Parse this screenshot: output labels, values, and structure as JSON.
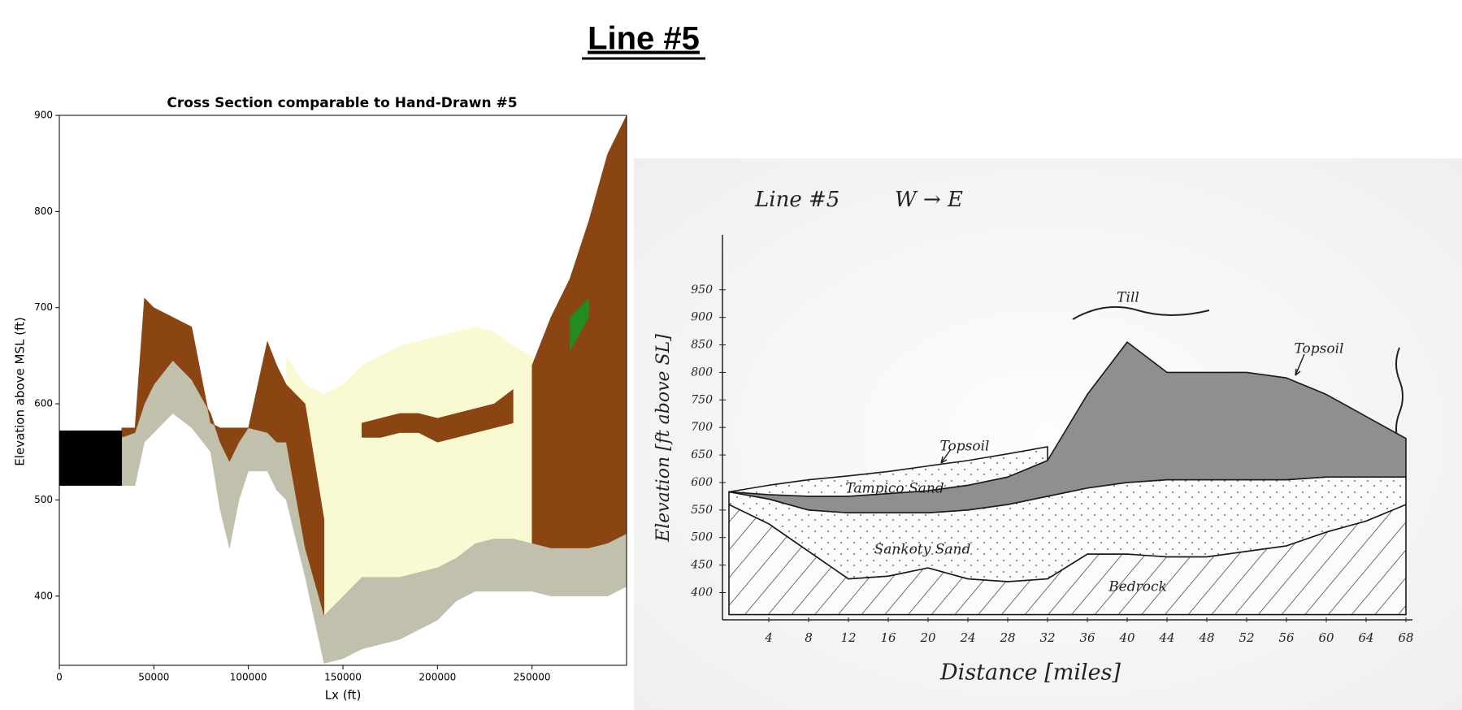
{
  "title": "Line #5",
  "chart_data": [
    {
      "type": "cross-section",
      "title": "Cross Section comparable to Hand-Drawn #5",
      "xlabel": "Lx (ft)",
      "ylabel": "Elevation above MSL (ft)",
      "xlim": [
        0,
        300000
      ],
      "ylim": [
        328,
        900
      ],
      "xticks": [
        0,
        50000,
        100000,
        150000,
        200000,
        250000
      ],
      "yticks": [
        400,
        500,
        600,
        700,
        800,
        900
      ],
      "x": [
        0,
        33000,
        40000,
        45000,
        50000,
        60000,
        70000,
        80000,
        85000,
        90000,
        95000,
        100000,
        110000,
        115000,
        120000,
        130000,
        140000,
        150000,
        160000,
        170000,
        180000,
        190000,
        200000,
        210000,
        220000,
        230000,
        240000,
        250000,
        260000,
        270000,
        280000,
        290000,
        300000
      ],
      "layers": [
        {
          "color": "#c0c0ac",
          "top": [
            null,
            565,
            570,
            600,
            620,
            645,
            625,
            590,
            560,
            540,
            560,
            575,
            570,
            560,
            560,
            450,
            380,
            400,
            420,
            420,
            420,
            425,
            430,
            440,
            455,
            460,
            460,
            455,
            450,
            450,
            450,
            455,
            465
          ],
          "bottom": [
            null,
            515,
            515,
            560,
            570,
            590,
            575,
            550,
            490,
            450,
            500,
            530,
            530,
            510,
            500,
            420,
            330,
            335,
            345,
            350,
            355,
            365,
            375,
            395,
            405,
            405,
            405,
            405,
            400,
            400,
            400,
            400,
            410
          ]
        },
        {
          "color": "#fafad2",
          "top": [
            null,
            null,
            null,
            null,
            null,
            null,
            null,
            null,
            null,
            null,
            null,
            null,
            null,
            null,
            650,
            620,
            610,
            620,
            640,
            650,
            660,
            665,
            670,
            675,
            680,
            675,
            660,
            650,
            610,
            null,
            null,
            null,
            null
          ],
          "bottom": [
            null,
            null,
            null,
            null,
            null,
            null,
            null,
            null,
            null,
            null,
            null,
            null,
            null,
            null,
            560,
            450,
            380,
            400,
            420,
            420,
            420,
            425,
            430,
            440,
            455,
            460,
            460,
            455,
            450,
            null,
            null,
            null,
            null
          ]
        },
        {
          "color": "#8b4513",
          "top": [
            null,
            575,
            575,
            710,
            700,
            690,
            680,
            580,
            575,
            575,
            575,
            575,
            665,
            640,
            620,
            600,
            480,
            null,
            null,
            null,
            null,
            null,
            null,
            null,
            null,
            null,
            null,
            640,
            690,
            730,
            790,
            860,
            900
          ],
          "bottom": [
            null,
            565,
            570,
            600,
            620,
            645,
            625,
            590,
            560,
            540,
            560,
            575,
            570,
            560,
            560,
            450,
            380,
            null,
            null,
            null,
            null,
            null,
            null,
            null,
            null,
            null,
            null,
            455,
            450,
            450,
            450,
            455,
            465
          ]
        },
        {
          "color": "#8b4513",
          "top": [
            null,
            null,
            null,
            null,
            null,
            null,
            null,
            null,
            null,
            null,
            null,
            null,
            null,
            null,
            null,
            null,
            null,
            null,
            580,
            585,
            590,
            590,
            585,
            590,
            595,
            600,
            615,
            null,
            null,
            null,
            null,
            null,
            null
          ],
          "bottom": [
            null,
            null,
            null,
            null,
            null,
            null,
            null,
            null,
            null,
            null,
            null,
            null,
            null,
            null,
            null,
            null,
            null,
            null,
            565,
            565,
            570,
            570,
            560,
            565,
            570,
            575,
            580,
            null,
            null,
            null,
            null,
            null,
            null
          ]
        },
        {
          "color": "#228b22",
          "top": [
            null,
            null,
            null,
            null,
            null,
            null,
            null,
            null,
            null,
            null,
            null,
            null,
            null,
            null,
            null,
            null,
            null,
            null,
            null,
            null,
            null,
            null,
            null,
            null,
            null,
            null,
            null,
            null,
            null,
            690,
            710,
            null,
            null
          ],
          "bottom": [
            null,
            null,
            null,
            null,
            null,
            null,
            null,
            null,
            null,
            null,
            null,
            null,
            null,
            null,
            null,
            null,
            null,
            null,
            null,
            null,
            null,
            null,
            null,
            null,
            null,
            null,
            null,
            null,
            null,
            655,
            690,
            null,
            null
          ]
        },
        {
          "color": "#000000",
          "top": [
            572,
            572,
            null,
            null,
            null,
            null,
            null,
            null,
            null,
            null,
            null,
            null,
            null,
            null,
            null,
            null,
            null,
            null,
            null,
            null,
            null,
            null,
            null,
            null,
            null,
            null,
            null,
            null,
            null,
            null,
            null,
            null,
            null
          ],
          "bottom": [
            515,
            515,
            null,
            null,
            null,
            null,
            null,
            null,
            null,
            null,
            null,
            null,
            null,
            null,
            null,
            null,
            null,
            null,
            null,
            null,
            null,
            null,
            null,
            null,
            null,
            null,
            null,
            null,
            null,
            null,
            null,
            null,
            null
          ]
        }
      ]
    },
    {
      "type": "sketch",
      "title": "Line #5",
      "subtitle": "W → E",
      "xlabel": "Distance [miles]",
      "ylabel": "Elevation [ft above SL]",
      "xlim": [
        0,
        68
      ],
      "ylim": [
        355,
        1050
      ],
      "xticks": [
        4,
        8,
        12,
        16,
        20,
        24,
        28,
        32,
        36,
        40,
        44,
        48,
        52,
        56,
        60,
        64,
        68
      ],
      "yticks": [
        400,
        450,
        500,
        550,
        600,
        650,
        700,
        750,
        800,
        850,
        900,
        950
      ],
      "annotations": [
        "Till",
        "Topsoil",
        "Topsoil",
        "Tampico Sand",
        "Sankoty Sand",
        "Bedrock"
      ],
      "x": [
        0,
        4,
        8,
        12,
        16,
        20,
        24,
        28,
        32,
        36,
        40,
        44,
        48,
        52,
        56,
        60,
        64,
        68
      ],
      "layers": [
        {
          "pattern": "hatch",
          "top": [
            560,
            525,
            475,
            425,
            430,
            445,
            425,
            420,
            425,
            470,
            470,
            465,
            465,
            475,
            485,
            510,
            530,
            560
          ],
          "bottom": [
            360,
            360,
            360,
            360,
            360,
            360,
            360,
            360,
            360,
            360,
            360,
            360,
            360,
            360,
            360,
            360,
            360,
            360
          ]
        },
        {
          "pattern": "dots",
          "top": [
            583,
            570,
            550,
            545,
            545,
            545,
            550,
            560,
            575,
            590,
            600,
            605,
            605,
            605,
            605,
            610,
            610,
            610
          ],
          "bottom": [
            560,
            525,
            475,
            425,
            430,
            445,
            425,
            420,
            425,
            470,
            470,
            465,
            465,
            475,
            485,
            510,
            530,
            560
          ]
        },
        {
          "color": "#8f8f8f",
          "top": [
            583,
            578,
            575,
            575,
            580,
            585,
            595,
            610,
            640,
            760,
            855,
            800,
            800,
            800,
            790,
            760,
            720,
            680
          ],
          "bottom": [
            583,
            570,
            550,
            545,
            545,
            545,
            550,
            560,
            575,
            590,
            600,
            605,
            605,
            605,
            605,
            610,
            610,
            610
          ]
        },
        {
          "pattern": "dots",
          "top": [
            583,
            595,
            605,
            612,
            620,
            630,
            640,
            652,
            665,
            null,
            null,
            null,
            null,
            null,
            null,
            null,
            null,
            null
          ],
          "bottom": [
            583,
            578,
            575,
            575,
            580,
            585,
            595,
            610,
            640,
            null,
            null,
            null,
            null,
            null,
            null,
            null,
            null,
            null
          ]
        }
      ]
    }
  ]
}
